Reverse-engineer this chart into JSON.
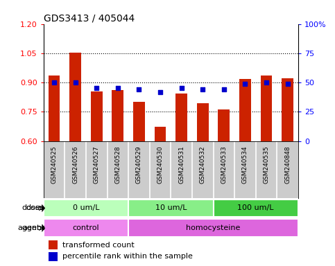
{
  "title": "GDS3413 / 405044",
  "samples": [
    "GSM240525",
    "GSM240526",
    "GSM240527",
    "GSM240528",
    "GSM240529",
    "GSM240530",
    "GSM240531",
    "GSM240532",
    "GSM240533",
    "GSM240534",
    "GSM240535",
    "GSM240848"
  ],
  "transformed_count": [
    0.935,
    1.052,
    0.855,
    0.862,
    0.8,
    0.672,
    0.843,
    0.793,
    0.762,
    0.917,
    0.935,
    0.922
  ],
  "percentile_rank": [
    50,
    50,
    45,
    45,
    44,
    42,
    45,
    44,
    44,
    49,
    50,
    49
  ],
  "ylim_left": [
    0.6,
    1.2
  ],
  "yticks_left": [
    0.6,
    0.75,
    0.9,
    1.05,
    1.2
  ],
  "ylim_right": [
    0,
    100
  ],
  "yticks_right": [
    0,
    25,
    50,
    75,
    100
  ],
  "bar_color": "#cc2200",
  "dot_color": "#0000cc",
  "bar_width": 0.55,
  "dose_colors": [
    "#bbffbb",
    "#88ee88",
    "#44cc44"
  ],
  "dose_groups": [
    {
      "label": "0 um/L",
      "start": 0,
      "end": 4
    },
    {
      "label": "10 um/L",
      "start": 4,
      "end": 8
    },
    {
      "label": "100 um/L",
      "start": 8,
      "end": 12
    }
  ],
  "agent_colors": [
    "#ee88ee",
    "#dd66dd"
  ],
  "agent_groups": [
    {
      "label": "control",
      "start": 0,
      "end": 4
    },
    {
      "label": "homocysteine",
      "start": 4,
      "end": 12
    }
  ],
  "dose_label": "dose",
  "agent_label": "agent",
  "legend_bar_label": "transformed count",
  "legend_dot_label": "percentile rank within the sample",
  "background_color": "#ffffff",
  "label_bg_color": "#cccccc",
  "title_fontsize": 10,
  "tick_fontsize": 8,
  "annotation_fontsize": 8,
  "legend_fontsize": 8
}
